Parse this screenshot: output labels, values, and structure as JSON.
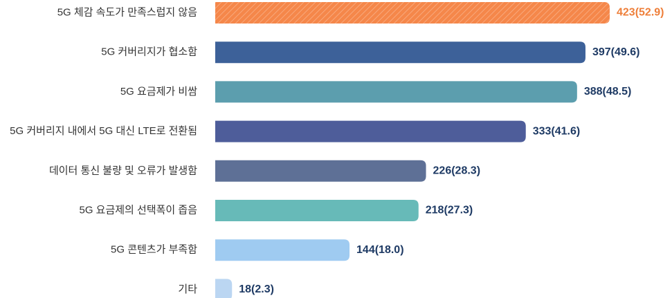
{
  "chart_data": {
    "type": "bar",
    "orientation": "horizontal",
    "categories": [
      "5G 체감 속도가 만족스럽지 않음",
      "5G 커버리지가 협소함",
      "5G 요금제가 비쌈",
      "5G 커버리지 내에서 5G 대신 LTE로 전환됨",
      "데이터 통신 불량 및 오류가 발생함",
      "5G 요금제의 선택폭이 좁음",
      "5G 콘텐츠가 부족함",
      "기타"
    ],
    "values": [
      423,
      397,
      388,
      333,
      226,
      218,
      144,
      18
    ],
    "percentages": [
      52.9,
      49.6,
      48.5,
      41.6,
      28.3,
      27.3,
      18.0,
      2.3
    ],
    "value_labels": [
      "423(52.9)",
      "397(49.6)",
      "388(48.5)",
      "333(41.6)",
      "226(28.3)",
      "218(27.3)",
      "144(18.0)",
      "18(2.3)"
    ],
    "bar_colors": [
      "#F5874A",
      "#3D6199",
      "#5C9EAE",
      "#4E5D9A",
      "#5E7096",
      "#67BAB8",
      "#9FCBF1",
      "#BBD6F2"
    ],
    "highlight_index": 0,
    "highlight_label_color": "#EE7F3A",
    "label_color": "#1E3A64",
    "xlim": [
      0,
      423
    ],
    "grid": false,
    "legend": "none",
    "title": "",
    "xlabel": "",
    "ylabel": ""
  }
}
